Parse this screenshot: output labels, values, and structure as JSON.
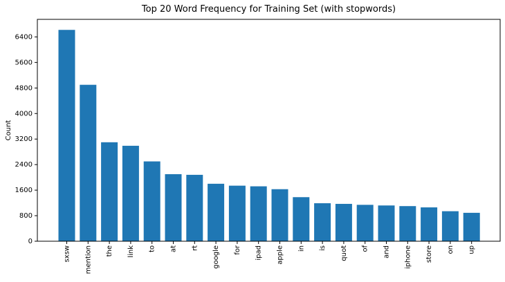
{
  "chart_data": {
    "type": "bar",
    "title": "Top 20 Word Frequency for Training Set (with stopwords)",
    "xlabel": "",
    "ylabel": "Count",
    "categories": [
      "sxsw",
      "mention",
      "the",
      "link",
      "to",
      "at",
      "rt",
      "google",
      "for",
      "ipad",
      "apple",
      "in",
      "is",
      "quot",
      "of",
      "and",
      "iphone",
      "store",
      "on",
      "up"
    ],
    "values": [
      6620,
      4900,
      3100,
      2990,
      2500,
      2100,
      2080,
      1800,
      1740,
      1720,
      1630,
      1380,
      1190,
      1170,
      1140,
      1120,
      1100,
      1060,
      940,
      890
    ],
    "yticks": [
      0,
      800,
      1600,
      2400,
      3200,
      4000,
      4800,
      5600,
      6400
    ],
    "ylim": [
      0,
      6950
    ],
    "grid": false,
    "bar_color": "#1f77b4"
  }
}
